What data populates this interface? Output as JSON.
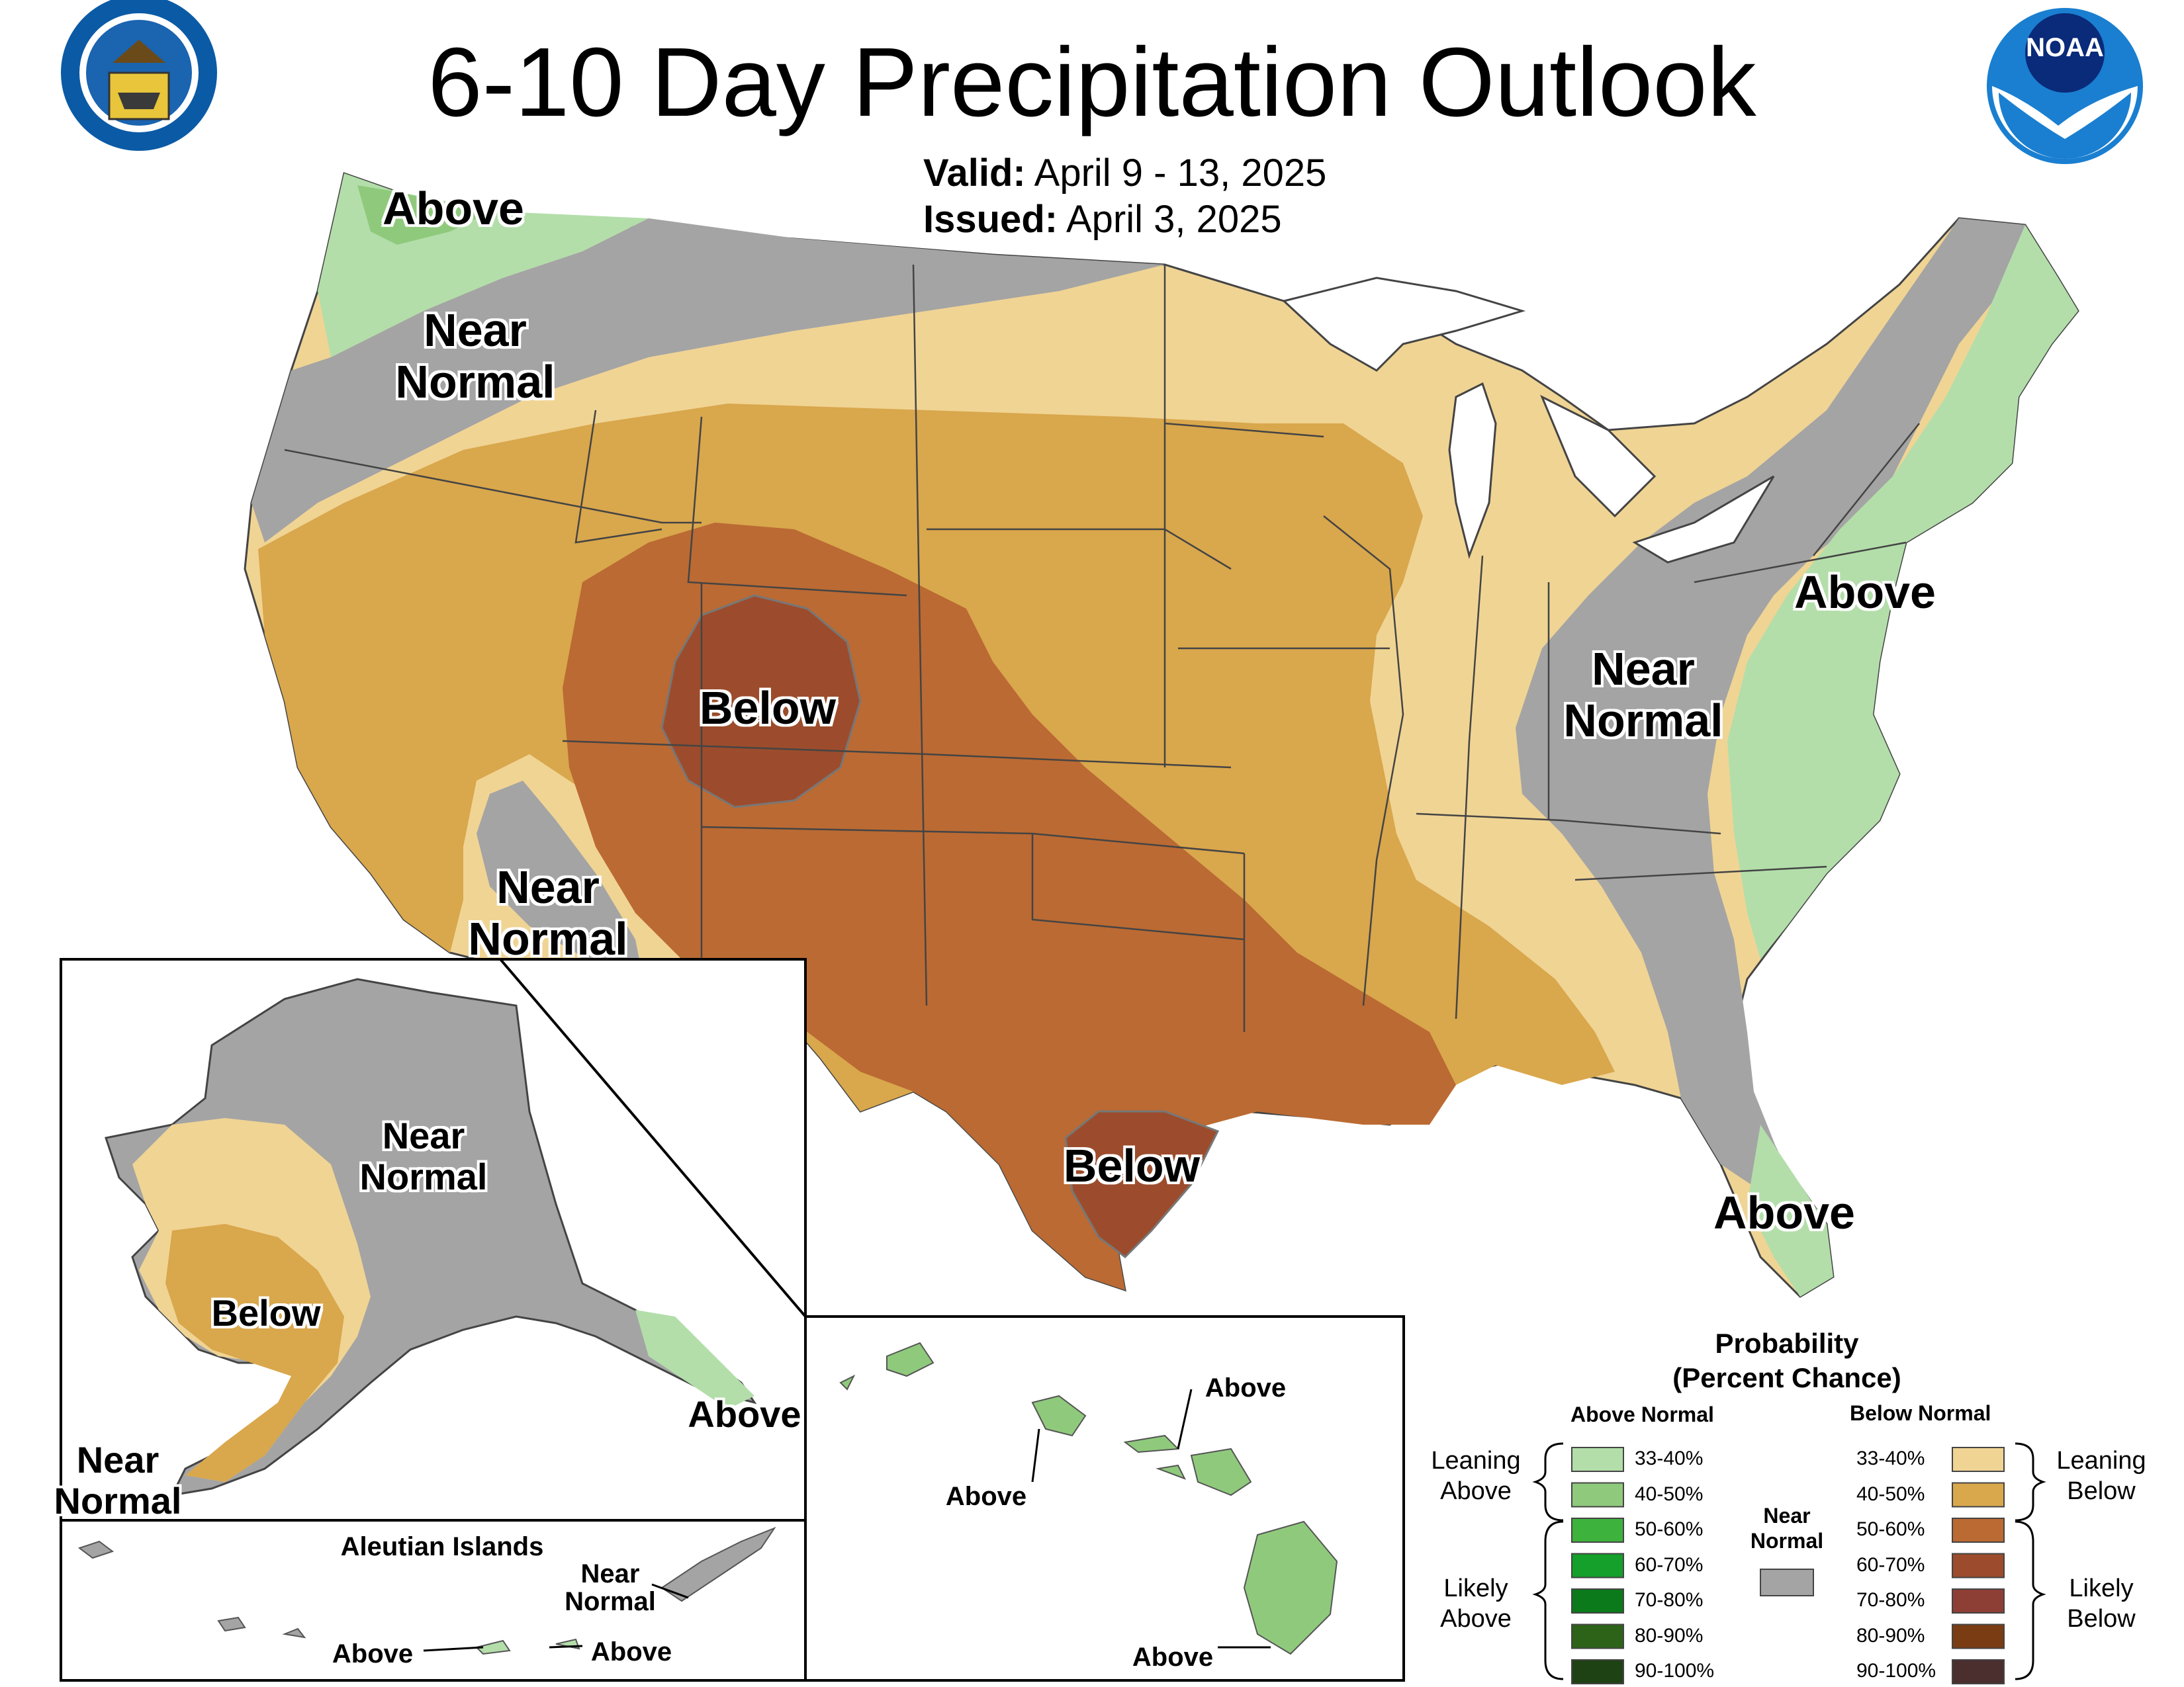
{
  "header": {
    "title": "6-10 Day Precipitation Outlook",
    "valid_label": "Valid:",
    "valid_value": "April 9 - 13, 2025",
    "issued_label": "Issued:",
    "issued_value": "April 3, 2025"
  },
  "logos": {
    "left": "doc-seal-icon",
    "right": "noaa-logo-icon",
    "noaa_text": "NOAA"
  },
  "categories": {
    "above": "Above",
    "below": "Below",
    "near_normal": [
      "Near",
      "Normal"
    ]
  },
  "inset_labels": {
    "aleutian_title": "Aleutian Islands"
  },
  "legend": {
    "title_line1": "Probability",
    "title_line2": "(Percent Chance)",
    "above_header": "Above Normal",
    "below_header": "Below Normal",
    "near_normal": [
      "Near",
      "Normal"
    ],
    "leaning_above": [
      "Leaning",
      "Above"
    ],
    "likely_above": [
      "Likely",
      "Above"
    ],
    "leaning_below": [
      "Leaning",
      "Below"
    ],
    "likely_below": [
      "Likely",
      "Below"
    ],
    "above_bins": [
      {
        "label": "33-40%",
        "color": "#b3deaa"
      },
      {
        "label": "40-50%",
        "color": "#8fca7c"
      },
      {
        "label": "50-60%",
        "color": "#3db33d"
      },
      {
        "label": "60-70%",
        "color": "#14a02a"
      },
      {
        "label": "70-80%",
        "color": "#0a7a1a"
      },
      {
        "label": "80-90%",
        "color": "#2d6318"
      },
      {
        "label": "90-100%",
        "color": "#1e4214"
      }
    ],
    "below_bins": [
      {
        "label": "33-40%",
        "color": "#f0d494"
      },
      {
        "label": "40-50%",
        "color": "#d9a74c"
      },
      {
        "label": "50-60%",
        "color": "#bb6a33"
      },
      {
        "label": "60-70%",
        "color": "#9c4c2c"
      },
      {
        "label": "70-80%",
        "color": "#8e3f35"
      },
      {
        "label": "80-90%",
        "color": "#7a3c12"
      },
      {
        "label": "90-100%",
        "color": "#4b2e2e"
      }
    ],
    "near_color": "#a4a4a4"
  }
}
